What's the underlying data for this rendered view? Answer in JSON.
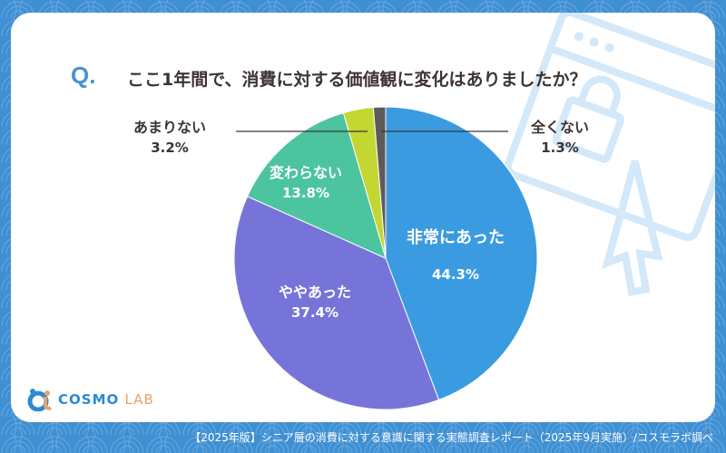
{
  "question": {
    "prefix": "Q.",
    "text": "ここ1年間で、消費に対する価値観に変化はありましたか？"
  },
  "logo": {
    "main": "COSMO",
    "sub": "LAB"
  },
  "footer": "【2025年版】シニア層の消費に対する意識に関する実態調査レポート（2025年9月実施）/コスモラボ調べ",
  "chart_data": {
    "type": "pie",
    "title": "ここ1年間で、消費に対する価値観に変化はありましたか？",
    "start": "top, clockwise",
    "slices": [
      {
        "label": "非常にあった",
        "value": 44.3,
        "display": "44.3%",
        "color": "#3a9be0"
      },
      {
        "label": "ややあった",
        "value": 37.4,
        "display": "37.4%",
        "color": "#7674d9"
      },
      {
        "label": "変わらない",
        "value": 13.8,
        "display": "13.8%",
        "color": "#4cc49f"
      },
      {
        "label": "あまりない",
        "value": 3.2,
        "display": "3.2%",
        "color": "#c3d631"
      },
      {
        "label": "全くない",
        "value": 1.3,
        "display": "1.3%",
        "color": "#5e5a5a"
      }
    ]
  }
}
